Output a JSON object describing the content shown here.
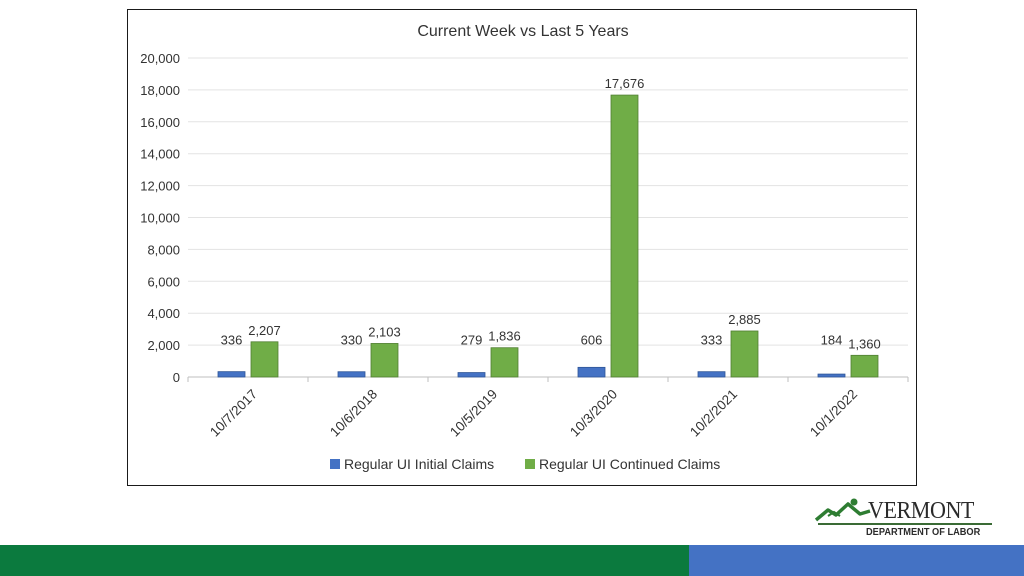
{
  "chart_data": {
    "type": "bar",
    "title": "Current Week vs Last 5 Years",
    "xlabel": "",
    "ylabel": "",
    "categories": [
      "10/7/2017",
      "10/6/2018",
      "10/5/2019",
      "10/3/2020",
      "10/2/2021",
      "10/1/2022"
    ],
    "series": [
      {
        "name": "Regular UI Initial Claims",
        "color": "#4472c4",
        "values": [
          336,
          330,
          279,
          606,
          333,
          184
        ],
        "labels": [
          "336",
          "330",
          "279",
          "606",
          "333",
          "184"
        ]
      },
      {
        "name": "Regular UI Continued Claims",
        "color": "#70ad47",
        "values": [
          2207,
          2103,
          1836,
          17676,
          2885,
          1360
        ],
        "labels": [
          "2,207",
          "2,103",
          "1,836",
          "17,676",
          "2,885",
          "1,360"
        ]
      }
    ],
    "ylim": [
      0,
      20000
    ],
    "yticks": [
      0,
      2000,
      4000,
      6000,
      8000,
      10000,
      12000,
      14000,
      16000,
      18000,
      20000
    ],
    "ytick_labels": [
      "0",
      "2,000",
      "4,000",
      "6,000",
      "8,000",
      "10,000",
      "12,000",
      "14,000",
      "16,000",
      "18,000",
      "20,000"
    ],
    "grid": true,
    "legend_position": "bottom"
  },
  "branding": {
    "logo_word": "VERMONT",
    "logo_subtitle": "DEPARTMENT OF LABOR",
    "footer_colors": [
      "#0b7a3e",
      "#4472c4"
    ]
  }
}
